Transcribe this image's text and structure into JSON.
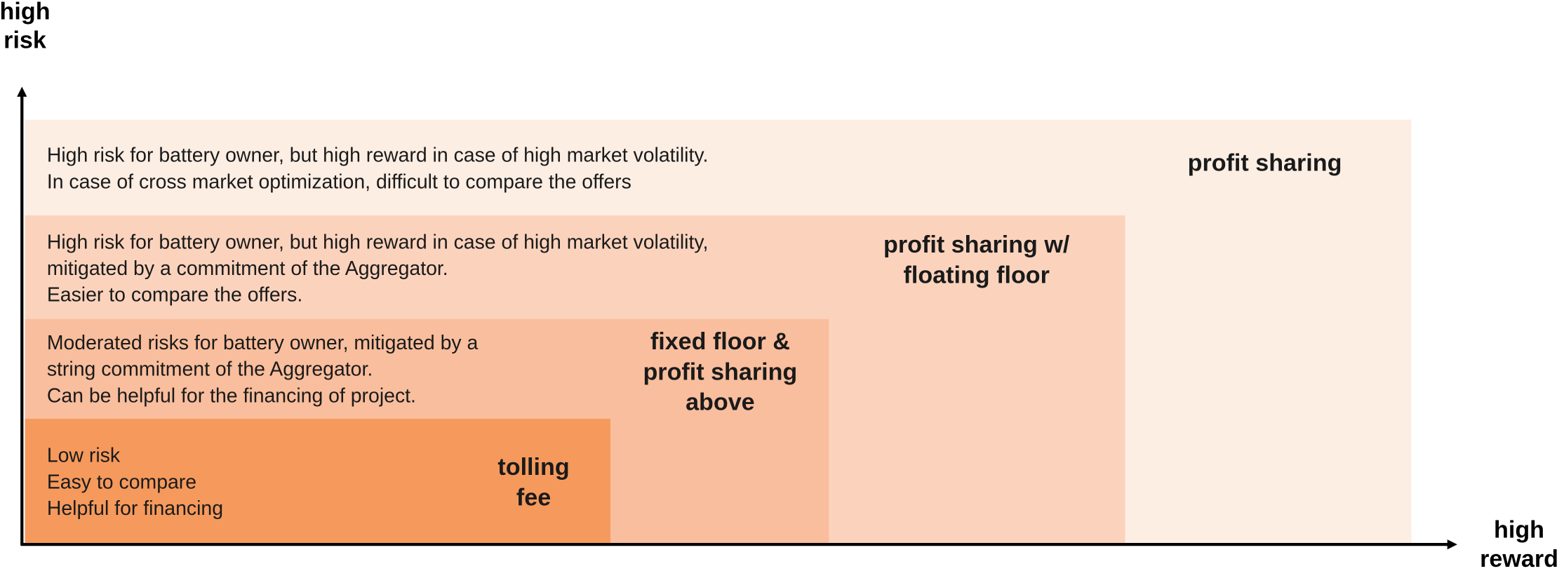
{
  "axes": {
    "y_label": [
      "high",
      "risk"
    ],
    "x_label": [
      "high",
      "reward"
    ]
  },
  "tiers": [
    {
      "title": [
        "profit sharing"
      ],
      "description": [
        "High risk for battery owner, but high reward in case of high market volatility.",
        "In case of cross market optimization, difficult to compare the offers"
      ]
    },
    {
      "title": [
        "profit sharing w/",
        "floating floor"
      ],
      "description": [
        "High risk for battery owner, but high reward in case of high market volatility,",
        "mitigated by a commitment of the Aggregator.",
        "Easier to compare the offers."
      ]
    },
    {
      "title": [
        "fixed floor &",
        "profit sharing",
        "above"
      ],
      "description": [
        "Moderated risks for battery owner, mitigated by a",
        "string commitment of the Aggregator.",
        "Can be helpful for the financing of project."
      ]
    },
    {
      "title": [
        "tolling",
        "fee"
      ],
      "description": [
        "Low risk",
        "Easy to compare",
        "Helpful for financing"
      ]
    }
  ]
}
